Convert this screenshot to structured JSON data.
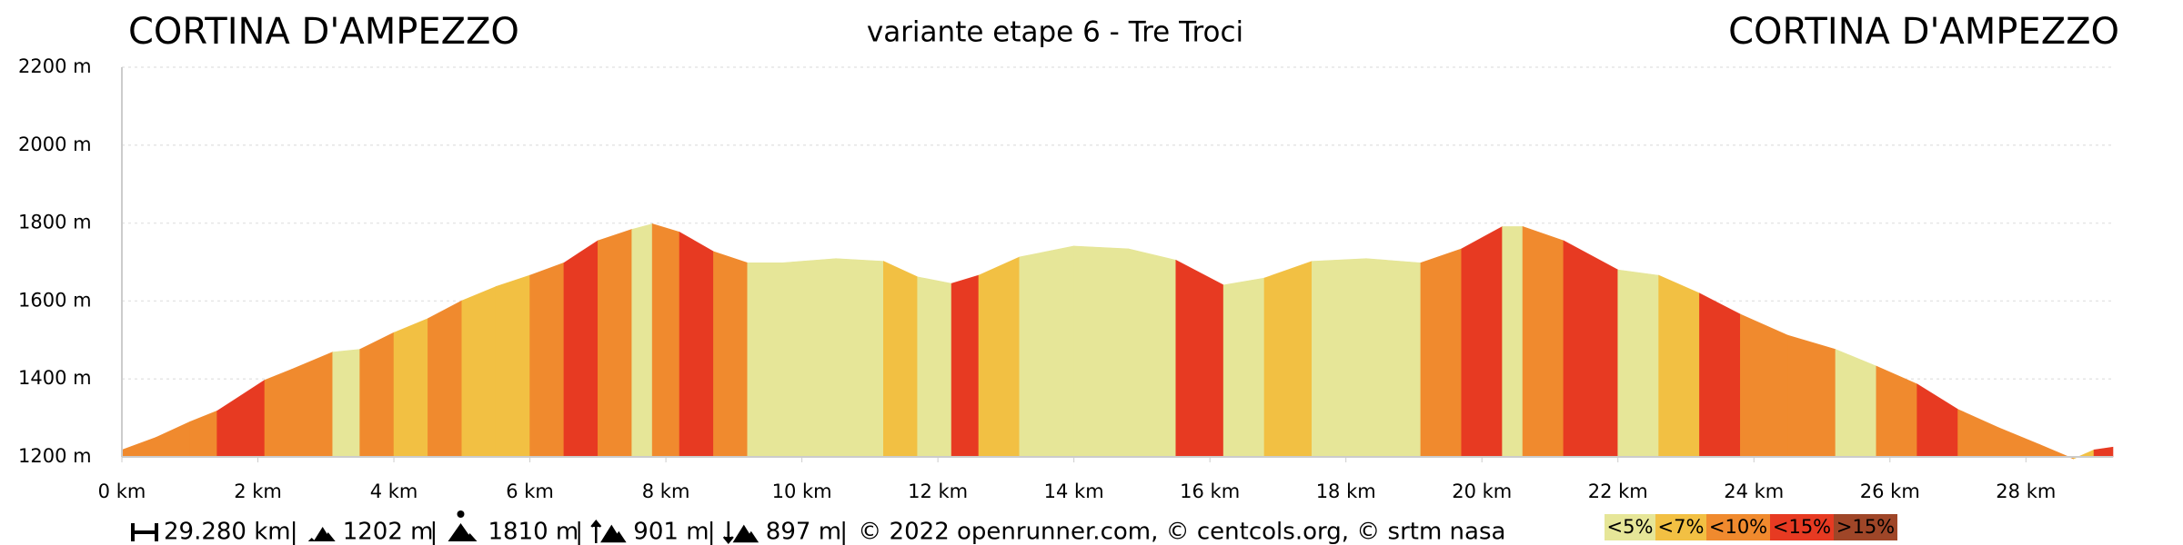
{
  "chart_data": {
    "type": "elevation-profile",
    "title_left": "CORTINA D'AMPEZZO",
    "title": "variante etape 6 - Tre Troci",
    "title_right": "CORTINA D'AMPEZZO",
    "x": [
      0,
      0.5,
      1.0,
      1.4,
      2.1,
      2.5,
      3.1,
      3.5,
      4.0,
      4.5,
      5.0,
      5.5,
      6.0,
      6.5,
      7.0,
      7.5,
      7.8,
      8.2,
      8.7,
      9.2,
      9.7,
      10.5,
      11.2,
      11.7,
      12.2,
      12.6,
      13.2,
      14.0,
      14.8,
      15.5,
      16.2,
      16.8,
      17.5,
      18.3,
      19.1,
      19.7,
      20.3,
      20.6,
      21.2,
      22.0,
      22.6,
      23.2,
      23.8,
      24.5,
      25.2,
      25.8,
      26.4,
      27.0,
      27.6,
      28.2,
      28.7,
      29.0,
      29.28
    ],
    "elevation": [
      1218,
      1250,
      1290,
      1318,
      1397,
      1425,
      1469,
      1476,
      1519,
      1555,
      1601,
      1637,
      1666,
      1698,
      1755,
      1784,
      1798,
      1777,
      1727,
      1698,
      1698,
      1709,
      1702,
      1662,
      1645,
      1666,
      1713,
      1741,
      1734,
      1705,
      1641,
      1659,
      1702,
      1709,
      1698,
      1734,
      1791,
      1791,
      1755,
      1680,
      1666,
      1620,
      1566,
      1512,
      1476,
      1433,
      1387,
      1322,
      1275,
      1232,
      1195,
      1218,
      1225
    ],
    "slope_class": [
      2,
      2,
      2,
      3,
      2,
      2,
      0,
      2,
      1,
      2,
      1,
      1,
      2,
      3,
      2,
      0,
      2,
      3,
      2,
      0,
      0,
      0,
      1,
      0,
      3,
      1,
      0,
      0,
      0,
      3,
      0,
      1,
      0,
      0,
      2,
      3,
      0,
      2,
      3,
      0,
      1,
      3,
      2,
      2,
      0,
      2,
      3,
      2,
      2,
      2,
      1,
      3
    ],
    "legend": [
      {
        "label": "<5%",
        "color": "#e6e698"
      },
      {
        "label": "<7%",
        "color": "#f2c043"
      },
      {
        "label": "<10%",
        "color": "#f08a2e"
      },
      {
        "label": "<15%",
        "color": "#e73a22"
      },
      {
        "label": ">15%",
        "color": "#9f4628"
      }
    ],
    "xlim": [
      0,
      29.28
    ],
    "ylim": [
      1200,
      2200
    ],
    "xticks": [
      {
        "value": 0,
        "label": "0 km"
      },
      {
        "value": 2,
        "label": "2 km"
      },
      {
        "value": 4,
        "label": "4 km"
      },
      {
        "value": 6,
        "label": "6 km"
      },
      {
        "value": 8,
        "label": "8 km"
      },
      {
        "value": 10,
        "label": "10 km"
      },
      {
        "value": 12,
        "label": "12 km"
      },
      {
        "value": 14,
        "label": "14 km"
      },
      {
        "value": 16,
        "label": "16 km"
      },
      {
        "value": 18,
        "label": "18 km"
      },
      {
        "value": 20,
        "label": "20 km"
      },
      {
        "value": 22,
        "label": "22 km"
      },
      {
        "value": 24,
        "label": "24 km"
      },
      {
        "value": 26,
        "label": "26 km"
      },
      {
        "value": 28,
        "label": "28 km"
      }
    ],
    "yticks": [
      {
        "value": 1200,
        "label": "1200 m"
      },
      {
        "value": 1400,
        "label": "1400 m"
      },
      {
        "value": 1600,
        "label": "1600 m"
      },
      {
        "value": 1800,
        "label": "1800 m"
      },
      {
        "value": 2000,
        "label": "2000 m"
      },
      {
        "value": 2200,
        "label": "2200 m"
      }
    ],
    "grid": true,
    "stats": [
      "29.280 km",
      "1202 m",
      "1810 m",
      "901 m",
      "897 m"
    ],
    "separator": "|",
    "credits": "© 2022 openrunner.com, © centcols.org, © srtm nasa"
  }
}
